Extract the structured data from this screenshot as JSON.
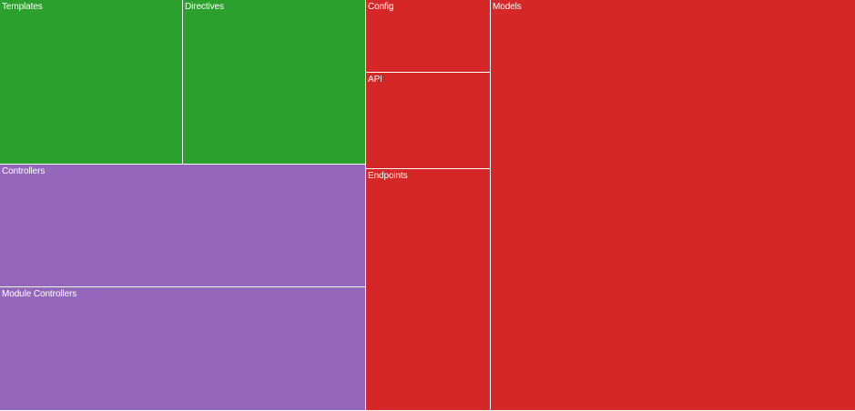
{
  "chart_data": {
    "type": "treemap",
    "colors": {
      "green": "#2ca02c",
      "purple": "#9467bd",
      "red": "#d62728"
    },
    "groups": [
      {
        "color": "#2ca02c",
        "items": [
          {
            "name": "Templates",
            "value": 360
          },
          {
            "name": "Directives",
            "value": 360
          }
        ]
      },
      {
        "color": "#9467bd",
        "items": [
          {
            "name": "Controllers",
            "value": 540
          },
          {
            "name": "Module Controllers",
            "value": 540
          }
        ]
      },
      {
        "color": "#d62728",
        "items": [
          {
            "name": "Config",
            "value": 107
          },
          {
            "name": "API",
            "value": 145
          },
          {
            "name": "Endpoints",
            "value": 362
          },
          {
            "name": "Models",
            "value": 1800
          }
        ]
      }
    ]
  }
}
